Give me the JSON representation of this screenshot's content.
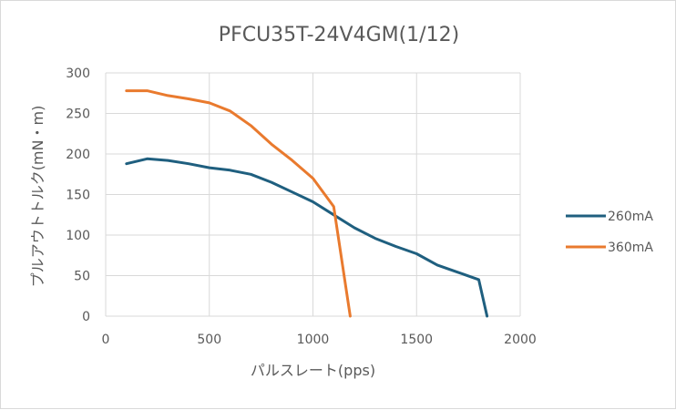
{
  "chart_data": {
    "type": "line",
    "title": "PFCU35T-24V4GM(1/12)",
    "xlabel": "パルスレート(pps)",
    "ylabel": "プルアウトトルク(mN・m)",
    "xlim": [
      0,
      2000
    ],
    "ylim": [
      0,
      300
    ],
    "xticks": [
      "0",
      "500",
      "1000",
      "1500",
      "2000"
    ],
    "yticks": [
      "0",
      "50",
      "100",
      "150",
      "200",
      "250",
      "300"
    ],
    "grid": true,
    "legend_position": "right",
    "series": [
      {
        "name": "260mA",
        "color": "#1f5f7f",
        "x": [
          100,
          200,
          300,
          400,
          500,
          600,
          700,
          800,
          900,
          1000,
          1100,
          1200,
          1300,
          1400,
          1500,
          1600,
          1700,
          1800,
          1840
        ],
        "y": [
          188,
          194,
          192,
          188,
          183,
          180,
          175,
          165,
          153,
          141,
          125,
          109,
          96,
          86,
          77,
          63,
          54,
          45,
          0
        ]
      },
      {
        "name": "360mA",
        "color": "#e97a2e",
        "x": [
          100,
          200,
          300,
          400,
          500,
          600,
          700,
          800,
          900,
          1000,
          1100,
          1180
        ],
        "y": [
          278,
          278,
          272,
          268,
          263,
          253,
          235,
          212,
          192,
          170,
          135,
          0
        ]
      }
    ]
  }
}
